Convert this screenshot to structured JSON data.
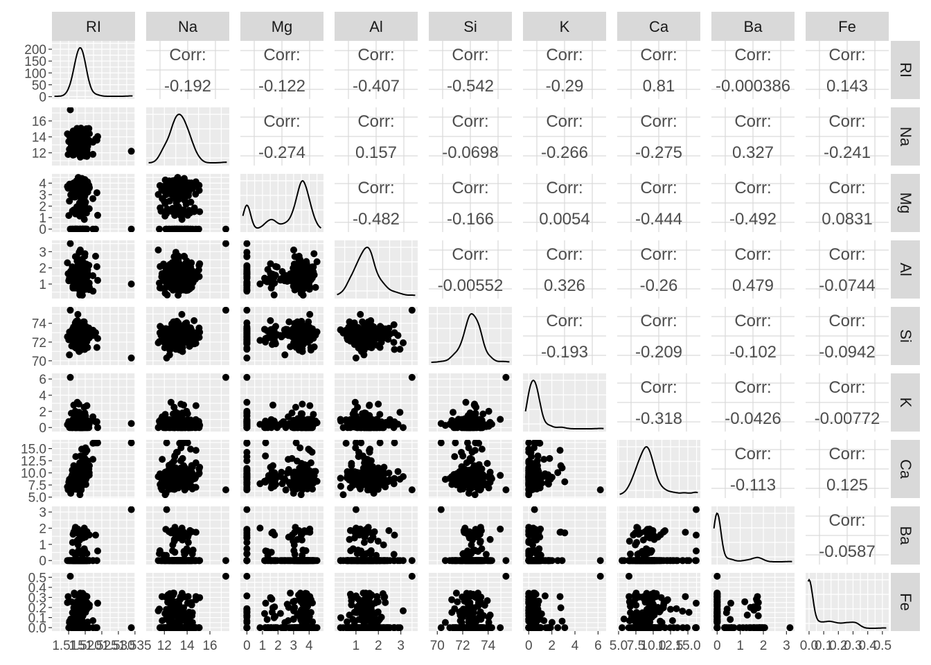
{
  "chart_data": {
    "type": "scatter",
    "plot_kind": "pairs-matrix",
    "variables": [
      "RI",
      "Na",
      "Mg",
      "Al",
      "Si",
      "K",
      "Ca",
      "Ba",
      "Fe"
    ],
    "lower_panels": "scatter",
    "diagonal_panels": "density",
    "upper_panels": "correlation",
    "corr_label": "Corr:",
    "correlations": [
      [
        "RI",
        "Na",
        "-0.192"
      ],
      [
        "RI",
        "Mg",
        "-0.122"
      ],
      [
        "RI",
        "Al",
        "-0.407"
      ],
      [
        "RI",
        "Si",
        "-0.542"
      ],
      [
        "RI",
        "K",
        "-0.29"
      ],
      [
        "RI",
        "Ca",
        "0.81"
      ],
      [
        "RI",
        "Ba",
        "-0.000386"
      ],
      [
        "RI",
        "Fe",
        "0.143"
      ],
      [
        "Na",
        "Mg",
        "-0.274"
      ],
      [
        "Na",
        "Al",
        "0.157"
      ],
      [
        "Na",
        "Si",
        "-0.0698"
      ],
      [
        "Na",
        "K",
        "-0.266"
      ],
      [
        "Na",
        "Ca",
        "-0.275"
      ],
      [
        "Na",
        "Ba",
        "0.327"
      ],
      [
        "Na",
        "Fe",
        "-0.241"
      ],
      [
        "Mg",
        "Al",
        "-0.482"
      ],
      [
        "Mg",
        "Si",
        "-0.166"
      ],
      [
        "Mg",
        "K",
        "0.0054"
      ],
      [
        "Mg",
        "Ca",
        "-0.444"
      ],
      [
        "Mg",
        "Ba",
        "-0.492"
      ],
      [
        "Mg",
        "Fe",
        "0.0831"
      ],
      [
        "Al",
        "Si",
        "-0.00552"
      ],
      [
        "Al",
        "K",
        "0.326"
      ],
      [
        "Al",
        "Ca",
        "-0.26"
      ],
      [
        "Al",
        "Ba",
        "0.479"
      ],
      [
        "Al",
        "Fe",
        "-0.0744"
      ],
      [
        "Si",
        "K",
        "-0.193"
      ],
      [
        "Si",
        "Ca",
        "-0.209"
      ],
      [
        "Si",
        "Ba",
        "-0.102"
      ],
      [
        "Si",
        "Fe",
        "-0.0942"
      ],
      [
        "K",
        "Ca",
        "-0.318"
      ],
      [
        "K",
        "Ba",
        "-0.0426"
      ],
      [
        "K",
        "Fe",
        "-0.00772"
      ],
      [
        "Ca",
        "Ba",
        "-0.113"
      ],
      [
        "Ca",
        "Fe",
        "0.125"
      ],
      [
        "Ba",
        "Fe",
        "-0.0587"
      ]
    ],
    "axes": {
      "RI": {
        "range": [
          1.511,
          1.534
        ],
        "ticks": [
          "1.515",
          "1.520",
          "1.525",
          "1.530",
          "1.535"
        ],
        "tick_values": [
          1.515,
          1.52,
          1.525,
          1.53,
          1.535
        ]
      },
      "Na": {
        "range": [
          10.7,
          17.4
        ],
        "ticks": [
          "12",
          "14",
          "16"
        ],
        "tick_values": [
          12,
          14,
          16
        ]
      },
      "Mg": {
        "range": [
          -0.2,
          4.7
        ],
        "ticks": [
          "0",
          "1",
          "2",
          "3",
          "4"
        ],
        "tick_values": [
          0,
          1,
          2,
          3,
          4
        ]
      },
      "Al": {
        "range": [
          0.2,
          3.6
        ],
        "ticks": [
          "1",
          "2",
          "3"
        ],
        "tick_values": [
          1,
          2,
          3
        ]
      },
      "Si": {
        "range": [
          69.6,
          75.6
        ],
        "ticks": [
          "70",
          "72",
          "74"
        ],
        "tick_values": [
          70,
          72,
          74
        ]
      },
      "K": {
        "range": [
          -0.2,
          6.4
        ],
        "ticks": [
          "0",
          "2",
          "4",
          "6"
        ],
        "tick_values": [
          0,
          2,
          4,
          6
        ]
      },
      "Ca": {
        "range": [
          5.3,
          16.3
        ],
        "ticks": [
          "5.0",
          "7.5",
          "10.0",
          "12.5",
          "15.0"
        ],
        "tick_values": [
          5.0,
          7.5,
          10.0,
          12.5,
          15.0
        ]
      },
      "Ba": {
        "range": [
          -0.1,
          3.2
        ],
        "ticks": [
          "0",
          "1",
          "2",
          "3"
        ],
        "tick_values": [
          0,
          1,
          2,
          3
        ]
      },
      "Fe": {
        "range": [
          0.0,
          0.52
        ],
        "ticks": [
          "0.0",
          "0.1",
          "0.2",
          "0.3",
          "0.4",
          "0.5"
        ],
        "tick_values": [
          0.0,
          0.1,
          0.2,
          0.3,
          0.4,
          0.5
        ]
      }
    },
    "row_axes": {
      "RI": {
        "range": [
          0,
          225
        ],
        "ticks": [
          "0",
          "50",
          "100",
          "150",
          "200"
        ],
        "tick_values": [
          0,
          50,
          100,
          150,
          200
        ]
      },
      "Na": {
        "range": [
          10.7,
          17.4
        ],
        "ticks": [
          "12",
          "14",
          "16"
        ],
        "tick_values": [
          12,
          14,
          16
        ]
      },
      "Mg": {
        "range": [
          -0.05,
          4.6
        ],
        "ticks": [
          "0",
          "1",
          "2",
          "3",
          "4"
        ],
        "tick_values": [
          0,
          1,
          2,
          3,
          4
        ]
      },
      "Al": {
        "range": [
          0.25,
          3.55
        ],
        "ticks": [
          "1",
          "2",
          "3"
        ],
        "tick_values": [
          1,
          2,
          3
        ]
      },
      "Si": {
        "range": [
          69.8,
          75.5
        ],
        "ticks": [
          "70",
          "72",
          "74"
        ],
        "tick_values": [
          70,
          72,
          74
        ]
      },
      "K": {
        "range": [
          -0.2,
          6.4
        ],
        "ticks": [
          "0",
          "2",
          "4",
          "6"
        ],
        "tick_values": [
          0,
          2,
          4,
          6
        ]
      },
      "Ca": {
        "range": [
          5.3,
          16.3
        ],
        "ticks": [
          "5.0",
          "7.5",
          "10.0",
          "12.5",
          "15.0"
        ],
        "tick_values": [
          5.0,
          7.5,
          10.0,
          12.5,
          15.0
        ]
      },
      "Ba": {
        "range": [
          -0.1,
          3.2
        ],
        "ticks": [
          "0",
          "1",
          "2",
          "3"
        ],
        "tick_values": [
          0,
          1,
          2,
          3
        ]
      },
      "Fe": {
        "range": [
          -0.01,
          0.52
        ],
        "ticks": [
          "0.0",
          "0.1",
          "0.2",
          "0.3",
          "0.4",
          "0.5"
        ],
        "tick_values": [
          0.0,
          0.1,
          0.2,
          0.3,
          0.4,
          0.5
        ]
      }
    },
    "grid": true,
    "legend": "none"
  },
  "colors": {
    "panel_bg": "#ebebeb",
    "grid_major": "#ffffff",
    "strip_bg": "#d9d9d9",
    "strip_text": "#1a1a1a",
    "corr_text": "#4d4d4d",
    "corr_grid": "#d9d9d9",
    "point": "#000000",
    "line": "#000000",
    "tick_text": "#4d4d4d"
  }
}
